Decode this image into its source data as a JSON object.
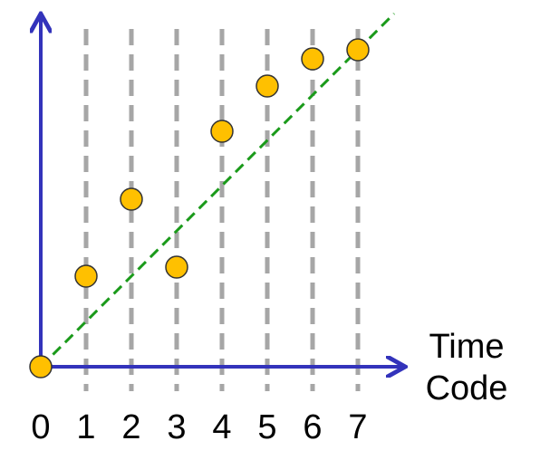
{
  "chart_data": {
    "type": "scatter",
    "x_label": "Time Code",
    "xlim": [
      0,
      8
    ],
    "ylim": [
      0,
      7.75
    ],
    "xticks": [
      0,
      1,
      2,
      3,
      4,
      5,
      6,
      7
    ],
    "grid": true,
    "grid_color": "#a6a6a6",
    "axis_color": "#3333bb",
    "series": [
      {
        "color": "#ffc000",
        "x": [
          0,
          1,
          2,
          3,
          4,
          5,
          6,
          7
        ],
        "values": [
          0,
          2,
          3.7,
          2.2,
          5.2,
          6.2,
          6.8,
          7
        ]
      }
    ],
    "reference_line": {
      "color": "#1a9a1a",
      "x": [
        0,
        7.8
      ],
      "values": [
        0,
        7.8
      ]
    }
  }
}
